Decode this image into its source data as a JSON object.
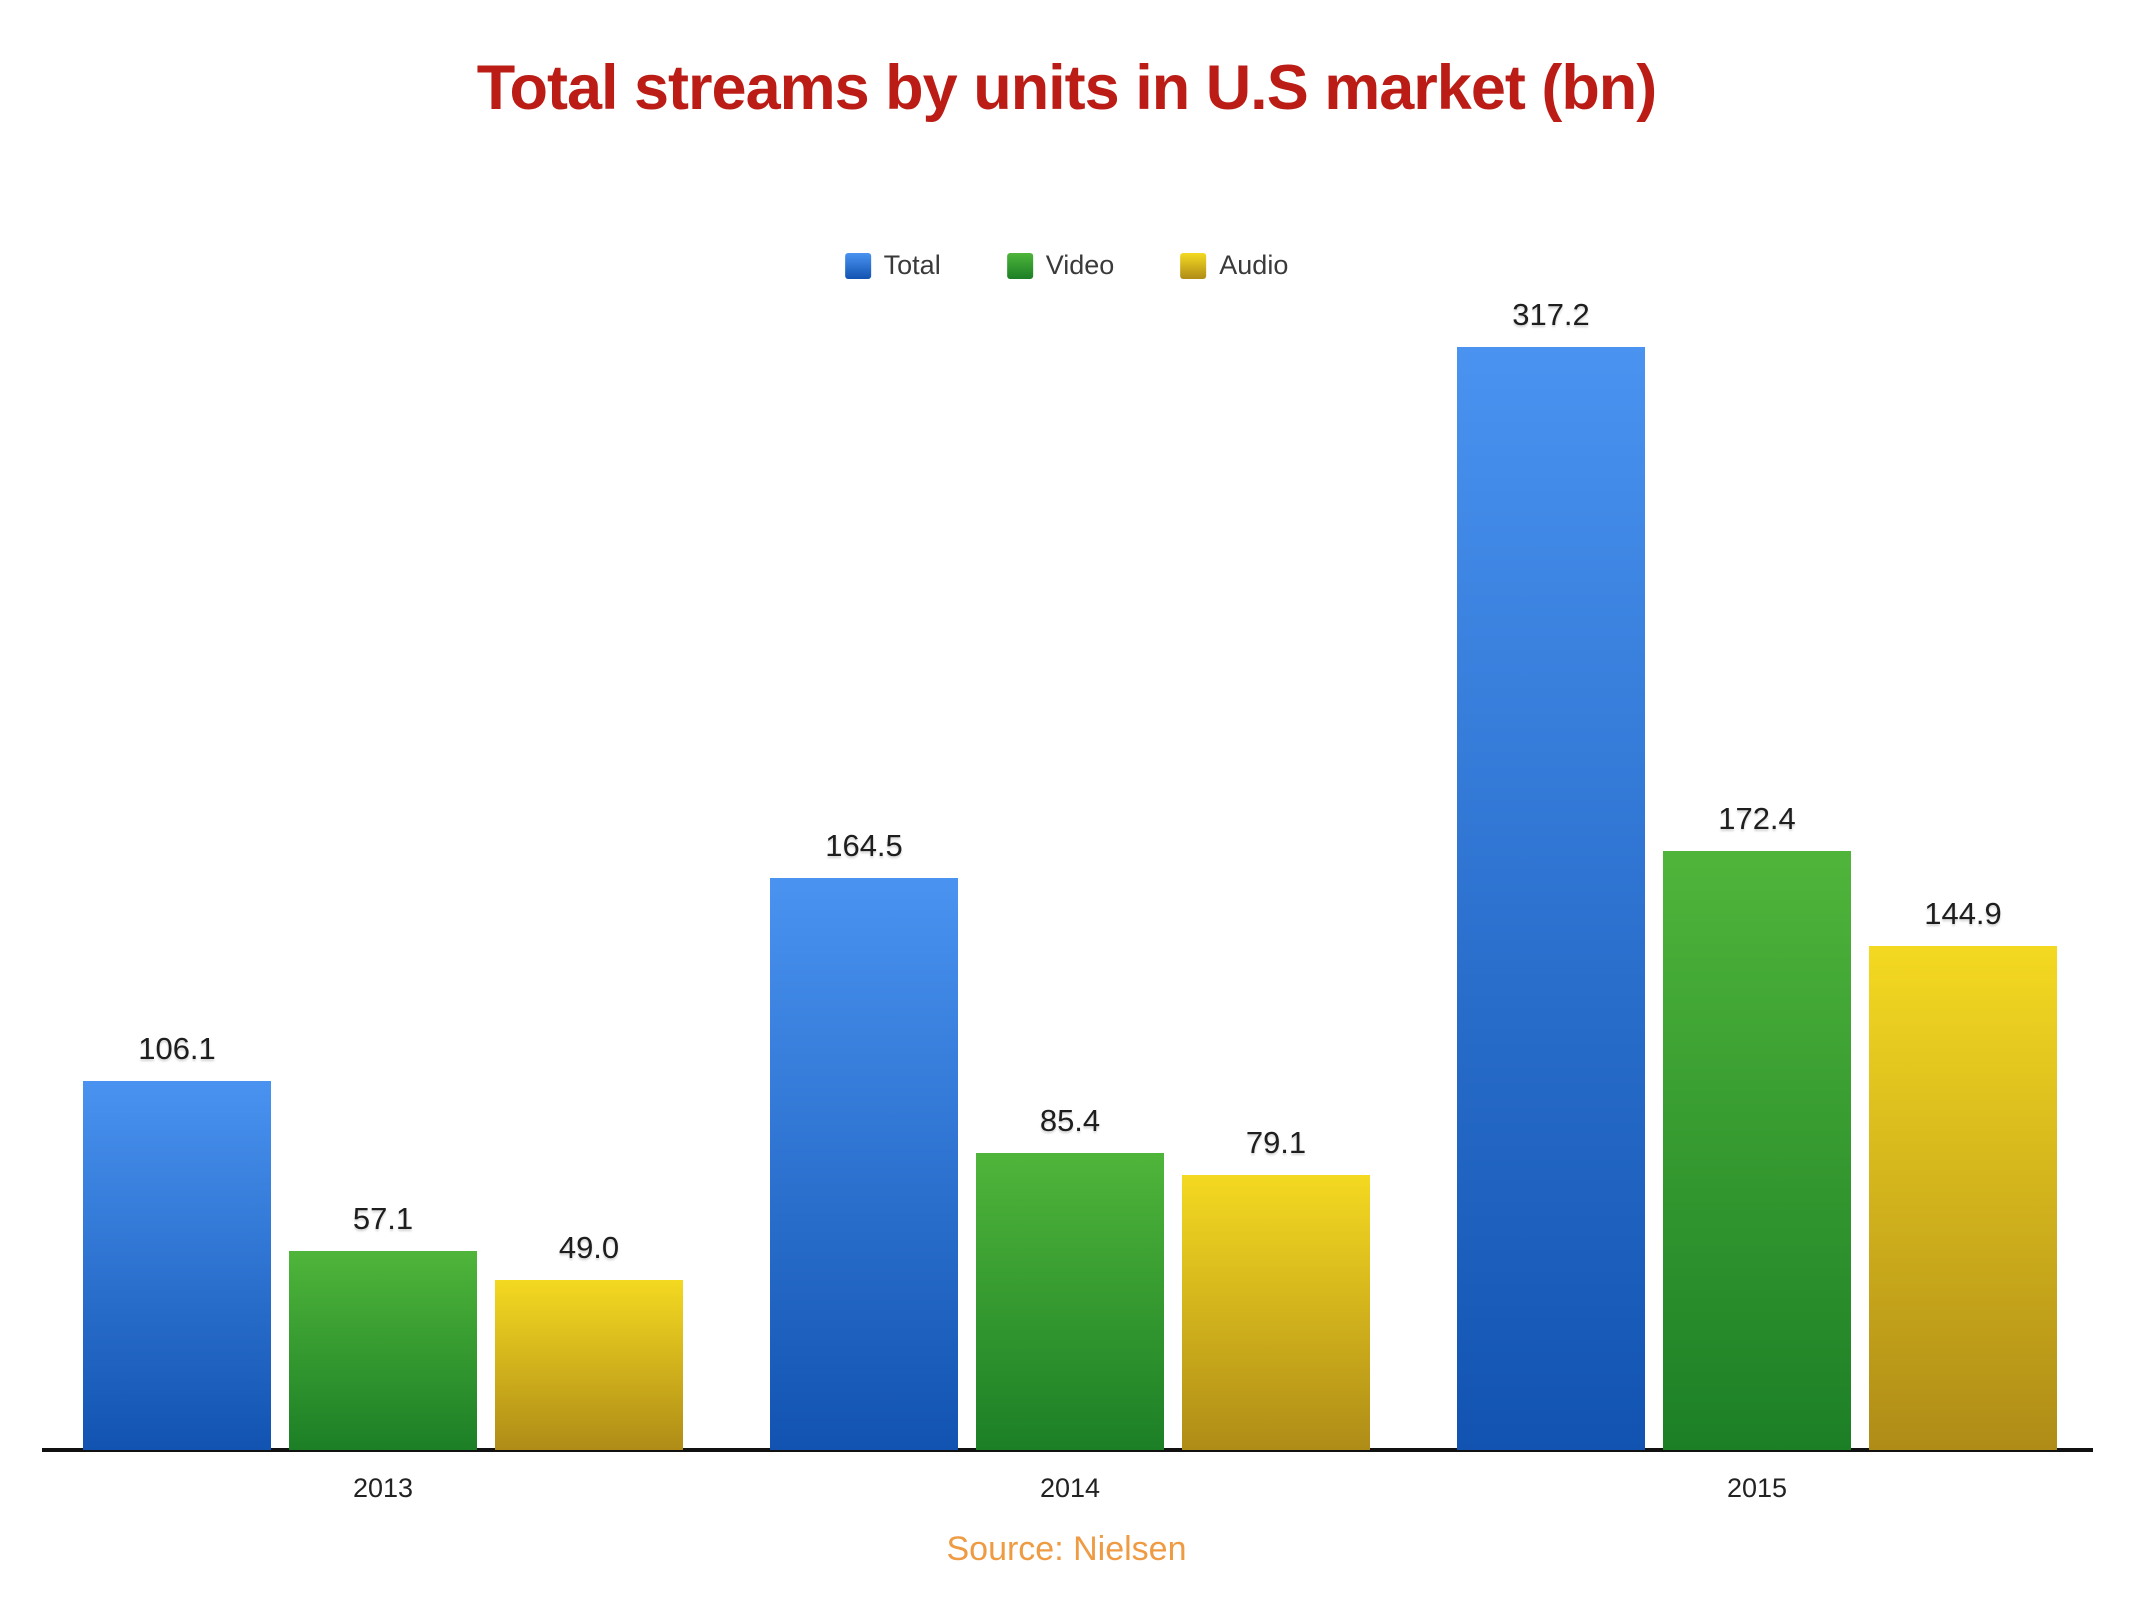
{
  "header": {
    "title": "Total streams by units in U.S market (bn)"
  },
  "chart_data": {
    "type": "bar",
    "title": "Total streams by units in U.S market (bn)",
    "categories": [
      "2013",
      "2014",
      "2015"
    ],
    "series": [
      {
        "name": "Total",
        "values": [
          106.1,
          164.5,
          317.2
        ],
        "color_top": "#4A93F0",
        "color_bottom": "#1253B1"
      },
      {
        "name": "Video",
        "values": [
          57.1,
          85.4,
          172.4
        ],
        "color_top": "#4FB53A",
        "color_bottom": "#1C7F26"
      },
      {
        "name": "Audio",
        "values": [
          49.0,
          79.1,
          144.9
        ],
        "color_top": "#F4D921",
        "color_bottom": "#AF8C17"
      }
    ],
    "xlabel": "",
    "ylabel": "",
    "ylim": [
      0,
      330
    ],
    "grid": false,
    "legend_position": "top",
    "value_labels": true,
    "x_axis_line": true
  },
  "footer": {
    "source": "Source: Nielsen"
  },
  "colors": {
    "title": "#BB1D16",
    "source": "#EE9B44",
    "axis": "#111111",
    "value_label": "#1E1E1E",
    "tick_label": "#222222"
  }
}
